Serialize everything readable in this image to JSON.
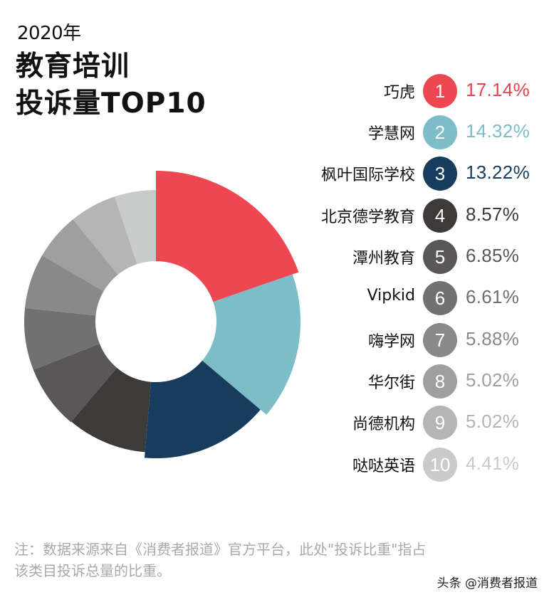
{
  "header": {
    "year": "2020年",
    "title_line1": "教育培训",
    "title_line2": "投诉量TOP10"
  },
  "legend": [
    {
      "rank": "1",
      "name": "巧虎",
      "pct": "17.14%",
      "badge_color": "#ee4752",
      "text_color": "#e5434f"
    },
    {
      "rank": "2",
      "name": "学慧网",
      "pct": "14.32%",
      "badge_color": "#7cbdc7",
      "text_color": "#7cbdc7"
    },
    {
      "rank": "3",
      "name": "枫叶国际学校",
      "pct": "13.22%",
      "badge_color": "#173c5e",
      "text_color": "#173c5e"
    },
    {
      "rank": "4",
      "name": "北京德学教育",
      "pct": "8.57%",
      "badge_color": "#3e3a39",
      "text_color": "#3e3a39"
    },
    {
      "rank": "5",
      "name": "潭州教育",
      "pct": "6.85%",
      "badge_color": "#595757",
      "text_color": "#595757"
    },
    {
      "rank": "6",
      "name": "Vipkid",
      "pct": "6.61%",
      "badge_color": "#727171",
      "text_color": "#6f6e6e"
    },
    {
      "rank": "7",
      "name": "嗨学网",
      "pct": "5.88%",
      "badge_color": "#898989",
      "text_color": "#898989"
    },
    {
      "rank": "8",
      "name": "华尔街",
      "pct": "5.02%",
      "badge_color": "#9f9f9f",
      "text_color": "#9f9f9f"
    },
    {
      "rank": "9",
      "name": "尚德机构",
      "pct": "5.02%",
      "badge_color": "#b5b5b5",
      "text_color": "#b5b5b5"
    },
    {
      "rank": "10",
      "name": "哒哒英语",
      "pct": "4.41%",
      "badge_color": "#c9caca",
      "text_color": "#c9caca"
    }
  ],
  "footer": {
    "note_line1": "注：数据来源来自《消费者报道》官方平台，此处\"投诉比重\"指占",
    "note_line2": "该类目投诉总量的比重。",
    "source": "头条 @消费者报道"
  },
  "chart_data": {
    "type": "pie",
    "subtype": "nightingale-rose-donut",
    "title": "2020年 教育培训投诉量TOP10",
    "categories": [
      "巧虎",
      "学慧网",
      "枫叶国际学校",
      "北京德学教育",
      "潭州教育",
      "Vipkid",
      "嗨学网",
      "华尔街",
      "尚德机构",
      "哒哒英语"
    ],
    "values": [
      17.14,
      14.32,
      13.22,
      8.57,
      6.85,
      6.61,
      5.88,
      5.02,
      5.02,
      4.41
    ],
    "unit": "%",
    "colors": [
      "#ee4752",
      "#7cbdc7",
      "#173c5e",
      "#3e3a39",
      "#595757",
      "#727171",
      "#898989",
      "#9f9f9f",
      "#b5b5b5",
      "#c9caca"
    ],
    "outer_radii": [
      212,
      203,
      192,
      184,
      185,
      185,
      185,
      185,
      185,
      185
    ],
    "inner_radius": 85,
    "center": [
      219,
      452
    ],
    "start_angle": "12 o'clock, clockwise",
    "legend_position": "right"
  }
}
